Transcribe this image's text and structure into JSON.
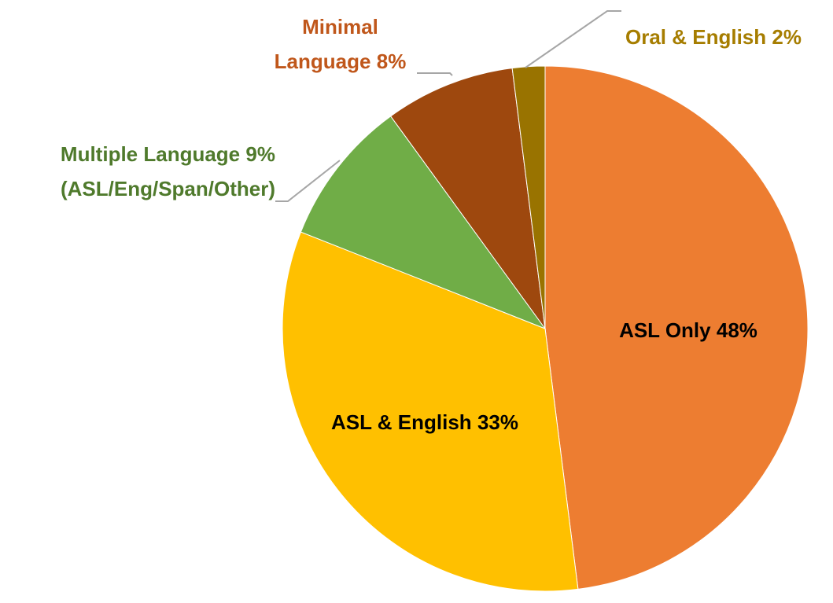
{
  "chart_data": {
    "type": "pie",
    "categories": [
      "ASL Only",
      "ASL & English",
      "Multiple Language",
      "Minimal Language",
      "Oral & English"
    ],
    "values": [
      48,
      33,
      9,
      8,
      2
    ],
    "value_labels": [
      "48%",
      "33%",
      "9%",
      "8%",
      "2%"
    ],
    "label_details": [
      null,
      null,
      "(ASL/Eng/Span/Other)",
      null,
      null
    ],
    "colors": [
      "#ed7d31",
      "#ffc000",
      "#70ad47",
      "#9e480e",
      "#997300"
    ],
    "label_colors": [
      "#000000",
      "#000000",
      "#4f7a2c",
      "#c0571b",
      "#a67d00"
    ]
  }
}
